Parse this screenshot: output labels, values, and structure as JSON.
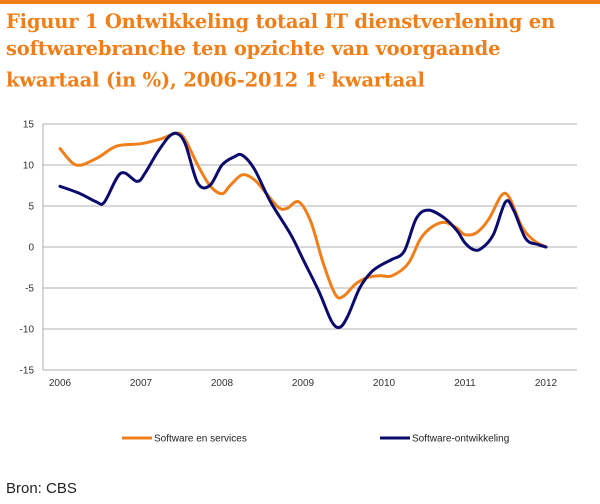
{
  "header": {
    "title_main": "Figuur 1 Ontwikkeling totaal IT dienstverlening en softwarebranche ten opzichte van voorgaande kwartaal (in %), 2006-2012 1",
    "title_sup": "e",
    "title_end": " kwartaal"
  },
  "footer": {
    "source": "Bron: CBS"
  },
  "colors": {
    "accent": "#f07f1a",
    "orange_series": "#f07f1a",
    "navy_series": "#0b0b6e",
    "grid": "#999999"
  },
  "chart_data": {
    "type": "line",
    "ylim": [
      -15,
      15
    ],
    "xlim": [
      2006,
      2012.5
    ],
    "y_ticks": [
      "15",
      "10",
      "5",
      "0",
      "-5",
      "-10",
      "-15"
    ],
    "x_ticks": [
      "2006",
      "2007",
      "2008",
      "2009",
      "2010",
      "2011",
      "2012"
    ],
    "grid": true,
    "legend_position": "bottom",
    "series": [
      {
        "name": "Software en services",
        "color": "#f07f1a",
        "x": [
          2006.0,
          2006.2,
          2006.45,
          2006.7,
          2007.0,
          2007.25,
          2007.45,
          2007.55,
          2007.7,
          2007.85,
          2008.0,
          2008.1,
          2008.25,
          2008.4,
          2008.55,
          2008.7,
          2008.8,
          2008.95,
          2009.1,
          2009.25,
          2009.4,
          2009.5,
          2009.65,
          2009.8,
          2009.95,
          2010.1,
          2010.3,
          2010.45,
          2010.6,
          2010.75,
          2010.9,
          2011.0,
          2011.15,
          2011.3,
          2011.45,
          2011.55,
          2011.7,
          2011.85,
          2012.0
        ],
        "y": [
          12.0,
          10.0,
          10.8,
          12.3,
          12.6,
          13.2,
          13.9,
          13.0,
          10.0,
          7.5,
          6.5,
          7.5,
          8.8,
          8.2,
          6.5,
          4.8,
          4.7,
          5.5,
          3.0,
          -2.0,
          -5.8,
          -6.0,
          -4.5,
          -3.7,
          -3.5,
          -3.5,
          -2.0,
          1.0,
          2.5,
          3.0,
          2.3,
          1.5,
          1.8,
          3.5,
          6.3,
          6.0,
          2.5,
          0.8,
          0.0
        ]
      },
      {
        "name": "Software-ontwikkeling",
        "color": "#0b0b6e",
        "x": [
          2006.0,
          2006.25,
          2006.45,
          2006.55,
          2006.75,
          2006.95,
          2007.05,
          2007.2,
          2007.35,
          2007.45,
          2007.55,
          2007.7,
          2007.85,
          2008.0,
          2008.15,
          2008.25,
          2008.4,
          2008.6,
          2008.85,
          2009.0,
          2009.2,
          2009.35,
          2009.45,
          2009.55,
          2009.7,
          2009.85,
          2010.0,
          2010.1,
          2010.25,
          2010.4,
          2010.55,
          2010.75,
          2010.9,
          2011.0,
          2011.1,
          2011.2,
          2011.35,
          2011.5,
          2011.6,
          2011.75,
          2011.9,
          2012.0
        ],
        "y": [
          7.4,
          6.5,
          5.5,
          5.5,
          9.0,
          8.0,
          9.0,
          11.5,
          13.5,
          13.8,
          12.5,
          7.8,
          7.5,
          10.0,
          11.0,
          11.2,
          9.5,
          5.5,
          1.5,
          -1.5,
          -5.5,
          -9.0,
          -9.8,
          -8.5,
          -5.0,
          -3.0,
          -2.0,
          -1.5,
          -0.5,
          3.5,
          4.5,
          3.5,
          2.0,
          0.5,
          -0.3,
          -0.2,
          1.5,
          5.5,
          4.5,
          1.0,
          0.3,
          0.0
        ]
      }
    ]
  }
}
